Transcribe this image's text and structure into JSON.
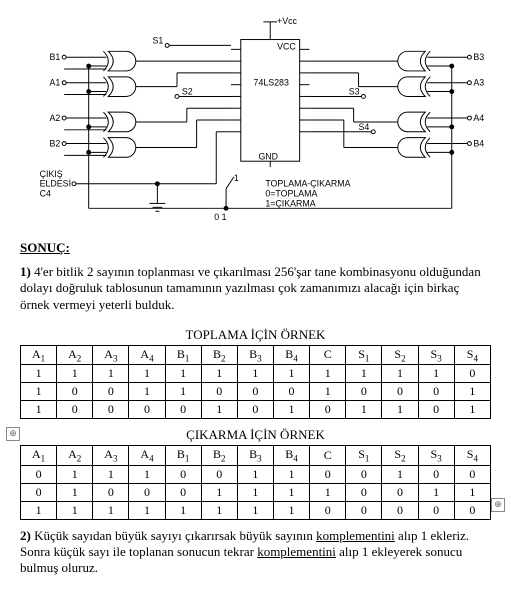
{
  "circuit": {
    "labels": {
      "vccTop": "+Vcc",
      "vccPin": "VCC",
      "gnd": "GND",
      "chip": "74LS283",
      "b1": "B1",
      "a1": "A1",
      "b2": "B2",
      "a2": "A2",
      "b3": "B3",
      "a3": "A3",
      "b4": "B4",
      "a4": "A4",
      "s1": "S1",
      "s2": "S2",
      "s3": "S3",
      "s4": "S4",
      "carry": "ÇIKIŞ\nELDESİ\nC4",
      "legend": "TOPLAMA-ÇIKARMA\n0=TOPLAMA\n1=ÇIKARMA",
      "sw1": "1",
      "sw0": "0 1"
    }
  },
  "heading": "SONUÇ:",
  "para1_prefix": "1) ",
  "para1": "4'er bitlik 2 sayının toplanması ve çıkarılması 256'şar tane kombinasyonu olduğundan dolayı doğruluk tablosunun tamamının yazılması çok zamanımızı alacağı için birkaç örnek vermeyi yeterli bulduk.",
  "toplama_title": "TOPLAMA İÇİN ÖRNEK",
  "headers": [
    "A₁",
    "A₂",
    "A₃",
    "A₄",
    "B₁",
    "B₂",
    "B₃",
    "B₄",
    "C",
    "S₁",
    "S₂",
    "S₃",
    "S₄"
  ],
  "toplama_rows": [
    [
      "1",
      "1",
      "1",
      "1",
      "1",
      "1",
      "1",
      "1",
      "1",
      "1",
      "1",
      "1",
      "0"
    ],
    [
      "1",
      "0",
      "0",
      "1",
      "1",
      "0",
      "0",
      "0",
      "1",
      "0",
      "0",
      "0",
      "1"
    ],
    [
      "1",
      "0",
      "0",
      "0",
      "0",
      "1",
      "0",
      "1",
      "0",
      "1",
      "1",
      "0",
      "1"
    ]
  ],
  "cikarma_title": "ÇIKARMA İÇİN ÖRNEK",
  "cikarma_rows": [
    [
      "0",
      "1",
      "1",
      "1",
      "0",
      "0",
      "1",
      "1",
      "0",
      "0",
      "1",
      "0",
      "0"
    ],
    [
      "0",
      "1",
      "0",
      "0",
      "0",
      "1",
      "1",
      "1",
      "1",
      "0",
      "0",
      "1",
      "1"
    ],
    [
      "1",
      "1",
      "1",
      "1",
      "1",
      "1",
      "1",
      "1",
      "0",
      "0",
      "0",
      "0",
      "0"
    ]
  ],
  "para2_prefix": "2) ",
  "para2_a": "Küçük sayıdan büyük sayıyı çıkarırsak büyük sayının ",
  "para2_u1": "komplementini",
  "para2_b": " alıp 1 ekleriz. Sonra küçük sayı ile toplanan sonucun tekrar ",
  "para2_u2": "komplementini",
  "para2_c": " alıp 1 ekleyerek sonucu bulmuş oluruz.",
  "anchor": "⊕"
}
